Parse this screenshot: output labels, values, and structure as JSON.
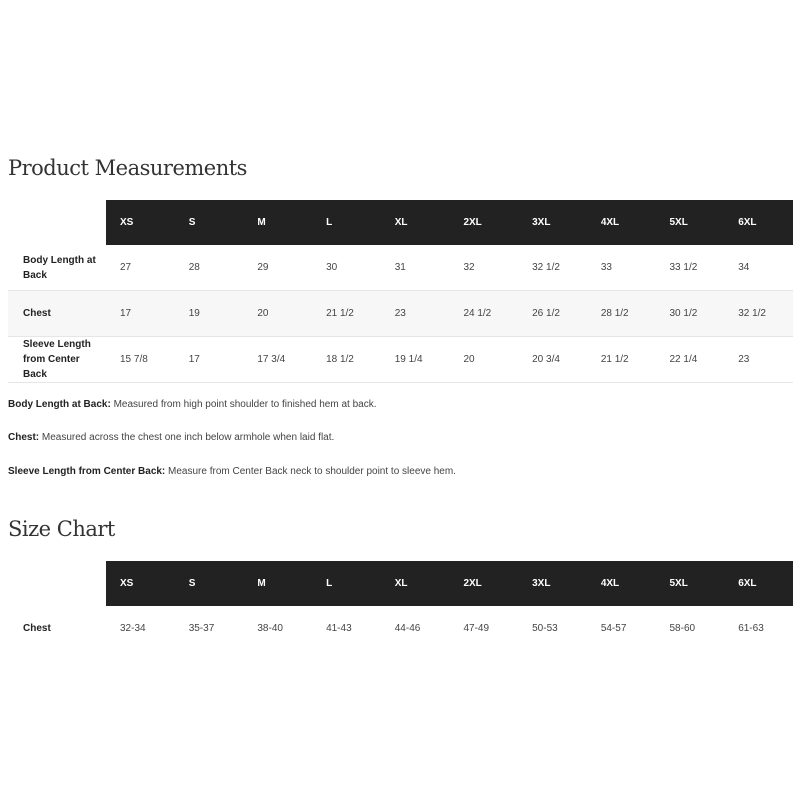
{
  "measurements": {
    "title": "Product Measurements",
    "sizes": [
      "XS",
      "S",
      "M",
      "L",
      "XL",
      "2XL",
      "3XL",
      "4XL",
      "5XL",
      "6XL"
    ],
    "rows": [
      {
        "label": "Body Length at Back",
        "values": [
          "27",
          "28",
          "29",
          "30",
          "31",
          "32",
          "32 1/2",
          "33",
          "33 1/2",
          "34"
        ]
      },
      {
        "label": "Chest",
        "values": [
          "17",
          "19",
          "20",
          "21 1/2",
          "23",
          "24 1/2",
          "26 1/2",
          "28 1/2",
          "30 1/2",
          "32 1/2"
        ]
      },
      {
        "label": "Sleeve Length from Center Back",
        "values": [
          "15 7/8",
          "17",
          "17 3/4",
          "18 1/2",
          "19 1/4",
          "20",
          "20 3/4",
          "21 1/2",
          "22 1/4",
          "23"
        ]
      }
    ],
    "notes": [
      {
        "term": "Body Length at Back:",
        "text": " Measured from high point shoulder to finished hem at back."
      },
      {
        "term": "Chest:",
        "text": " Measured across the chest one inch below armhole when laid flat."
      },
      {
        "term": "Sleeve Length from Center Back:",
        "text": " Measure from Center Back neck to shoulder point to sleeve hem."
      }
    ]
  },
  "size_chart": {
    "title": "Size Chart",
    "sizes": [
      "XS",
      "S",
      "M",
      "L",
      "XL",
      "2XL",
      "3XL",
      "4XL",
      "5XL",
      "6XL"
    ],
    "rows": [
      {
        "label": "Chest",
        "values": [
          "32-34",
          "35-37",
          "38-40",
          "41-43",
          "44-46",
          "47-49",
          "50-53",
          "54-57",
          "58-60",
          "61-63"
        ]
      }
    ]
  }
}
